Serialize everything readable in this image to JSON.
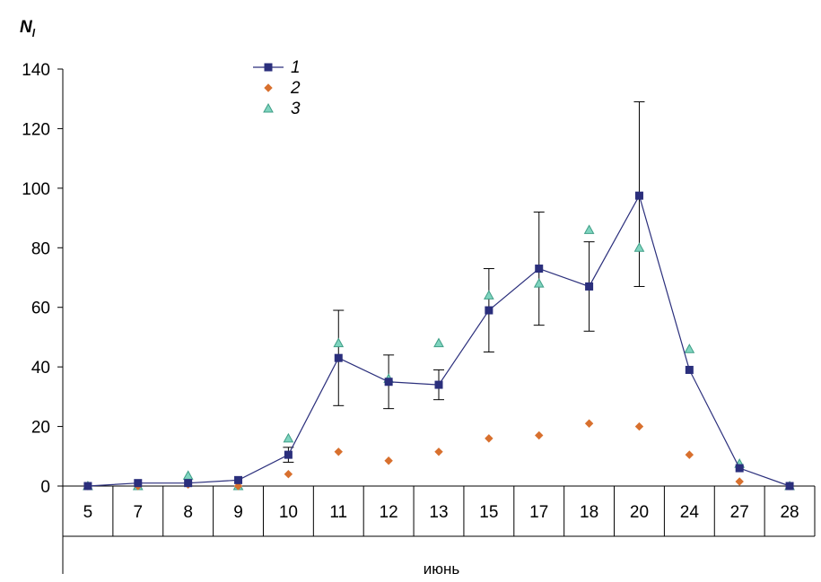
{
  "chart_data": {
    "type": "line",
    "ylabel": "N",
    "ylabel_sub": "l",
    "xlabel": "июнь",
    "categories": [
      "5",
      "7",
      "8",
      "9",
      "10",
      "11",
      "12",
      "13",
      "15",
      "17",
      "18",
      "20",
      "24",
      "27",
      "28"
    ],
    "ylim": [
      0,
      140
    ],
    "yticks": [
      0,
      20,
      40,
      60,
      80,
      100,
      120,
      140
    ],
    "grid": false,
    "legend_position": "top-left",
    "series": [
      {
        "name": "1",
        "kind": "line-square",
        "color": "#2b2f7c",
        "values": [
          0,
          1,
          1,
          2,
          10.5,
          43,
          35,
          34,
          59,
          73,
          67,
          97.5,
          39,
          6,
          0
        ],
        "error_low": [
          null,
          null,
          null,
          null,
          8,
          27,
          26,
          29,
          45,
          54,
          52,
          67,
          null,
          null,
          null
        ],
        "error_high": [
          null,
          null,
          null,
          null,
          13,
          59,
          44,
          39,
          73,
          92,
          82,
          129,
          null,
          null,
          null
        ]
      },
      {
        "name": "2",
        "kind": "marker-diamond",
        "color": "#d8702e",
        "values": [
          0,
          0,
          0.5,
          0,
          4,
          11.5,
          8.5,
          11.5,
          16,
          17,
          21,
          20,
          10.5,
          1.5,
          0
        ]
      },
      {
        "name": "3",
        "kind": "marker-triangle",
        "color": "#3e9e86",
        "values": [
          0,
          0,
          3.5,
          0,
          16,
          48,
          36,
          48,
          64,
          68,
          86,
          80,
          46,
          7.5,
          0
        ]
      }
    ]
  }
}
